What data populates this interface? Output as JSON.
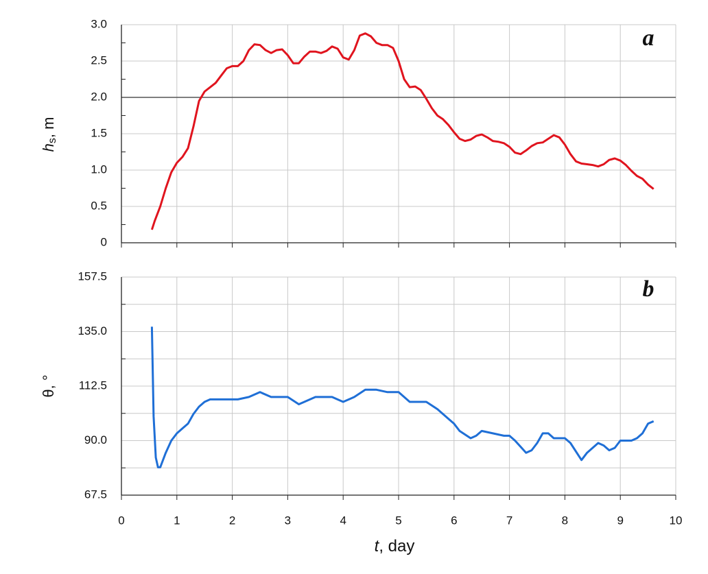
{
  "chart_data": [
    {
      "type": "line",
      "annotation": "a",
      "ylabel": {
        "symbol": "h",
        "subscript": "s",
        "unit": ", m"
      },
      "xlim": [
        0,
        10
      ],
      "xticks": [
        0,
        1,
        2,
        3,
        4,
        5,
        6,
        7,
        8,
        9,
        10
      ],
      "show_xticklabels": false,
      "ylim": [
        0,
        3
      ],
      "yticks": [
        0,
        0.5,
        {
          "value": 1,
          "label": "1.0"
        },
        1.5,
        {
          "value": 2,
          "label": "2.0"
        },
        2.5,
        {
          "value": 3,
          "label": "3.0"
        }
      ],
      "yminor": [
        0.25,
        0.75,
        1.25,
        1.75,
        2.25,
        2.75
      ],
      "minor_grid": false,
      "grid": true,
      "hline": 2,
      "color": "#e0141e",
      "x": [
        0.55,
        0.6,
        0.7,
        0.8,
        0.9,
        1.0,
        1.1,
        1.2,
        1.3,
        1.4,
        1.5,
        1.6,
        1.7,
        1.8,
        1.9,
        2.0,
        2.1,
        2.2,
        2.3,
        2.4,
        2.5,
        2.6,
        2.7,
        2.8,
        2.9,
        3.0,
        3.1,
        3.2,
        3.3,
        3.4,
        3.5,
        3.6,
        3.7,
        3.8,
        3.9,
        4.0,
        4.1,
        4.2,
        4.3,
        4.4,
        4.5,
        4.6,
        4.7,
        4.8,
        4.9,
        5.0,
        5.1,
        5.2,
        5.3,
        5.4,
        5.5,
        5.6,
        5.7,
        5.8,
        5.9,
        6.0,
        6.1,
        6.2,
        6.3,
        6.4,
        6.5,
        6.6,
        6.7,
        6.8,
        6.9,
        7.0,
        7.1,
        7.2,
        7.3,
        7.4,
        7.5,
        7.6,
        7.7,
        7.8,
        7.9,
        8.0,
        8.1,
        8.2,
        8.3,
        8.4,
        8.5,
        8.6,
        8.7,
        8.8,
        8.9,
        9.0,
        9.1,
        9.2,
        9.3,
        9.4,
        9.5,
        9.6
      ],
      "values": [
        0.18,
        0.3,
        0.5,
        0.75,
        0.97,
        1.1,
        1.18,
        1.3,
        1.6,
        1.95,
        2.08,
        2.14,
        2.2,
        2.3,
        2.4,
        2.43,
        2.43,
        2.5,
        2.65,
        2.73,
        2.72,
        2.65,
        2.61,
        2.65,
        2.66,
        2.58,
        2.47,
        2.47,
        2.56,
        2.63,
        2.63,
        2.61,
        2.64,
        2.7,
        2.67,
        2.55,
        2.52,
        2.65,
        2.85,
        2.88,
        2.84,
        2.75,
        2.72,
        2.72,
        2.68,
        2.5,
        2.25,
        2.14,
        2.15,
        2.1,
        1.98,
        1.85,
        1.75,
        1.7,
        1.62,
        1.52,
        1.43,
        1.4,
        1.42,
        1.47,
        1.49,
        1.45,
        1.4,
        1.39,
        1.37,
        1.32,
        1.24,
        1.22,
        1.27,
        1.33,
        1.37,
        1.38,
        1.43,
        1.48,
        1.45,
        1.35,
        1.22,
        1.12,
        1.09,
        1.08,
        1.07,
        1.05,
        1.08,
        1.14,
        1.16,
        1.13,
        1.07,
        0.99,
        0.92,
        0.88,
        0.8,
        0.74
      ]
    },
    {
      "type": "line",
      "annotation": "b",
      "ylabel": {
        "symbol": "θ",
        "subscript": "",
        "unit": ", °"
      },
      "xlabel": {
        "symbol": "t",
        "unit": ", day"
      },
      "xlim": [
        0,
        10
      ],
      "xticks": [
        0,
        1,
        2,
        3,
        4,
        5,
        6,
        7,
        8,
        9,
        10
      ],
      "show_xticklabels": true,
      "ylim": [
        67.5,
        157.5
      ],
      "yticks": [
        67.5,
        {
          "value": 90,
          "label": "90.0"
        },
        112.5,
        {
          "value": 135,
          "label": "135.0"
        },
        157.5
      ],
      "yminor": [
        78.75,
        101.25,
        123.75,
        146.25
      ],
      "minor_grid": true,
      "grid": true,
      "color": "#1f6fd6",
      "x": [
        0.55,
        0.58,
        0.62,
        0.66,
        0.7,
        0.8,
        0.9,
        1.0,
        1.1,
        1.2,
        1.3,
        1.4,
        1.5,
        1.6,
        1.7,
        2.0,
        2.1,
        2.3,
        2.5,
        2.7,
        3.0,
        3.2,
        3.3,
        3.5,
        3.8,
        4.0,
        4.2,
        4.4,
        4.6,
        4.8,
        5.0,
        5.2,
        5.5,
        5.7,
        5.9,
        6.0,
        6.1,
        6.3,
        6.4,
        6.5,
        6.7,
        6.9,
        7.0,
        7.1,
        7.3,
        7.4,
        7.5,
        7.6,
        7.7,
        7.8,
        8.0,
        8.1,
        8.3,
        8.4,
        8.6,
        8.7,
        8.8,
        8.9,
        9.0,
        9.2,
        9.3,
        9.4,
        9.5,
        9.6
      ],
      "values": [
        137,
        100,
        83,
        79,
        79,
        85,
        90,
        93,
        95,
        97,
        101,
        104,
        106,
        107,
        107,
        107,
        107,
        108,
        110,
        108,
        108,
        105,
        106,
        108,
        108,
        106,
        108,
        111,
        111,
        110,
        110,
        106,
        106,
        103,
        99,
        97,
        94,
        91,
        92,
        94,
        93,
        92,
        92,
        90,
        85,
        86,
        89,
        93,
        93,
        91,
        91,
        89,
        82,
        85,
        89,
        88,
        86,
        87,
        90,
        90,
        91,
        93,
        97,
        98
      ]
    }
  ]
}
